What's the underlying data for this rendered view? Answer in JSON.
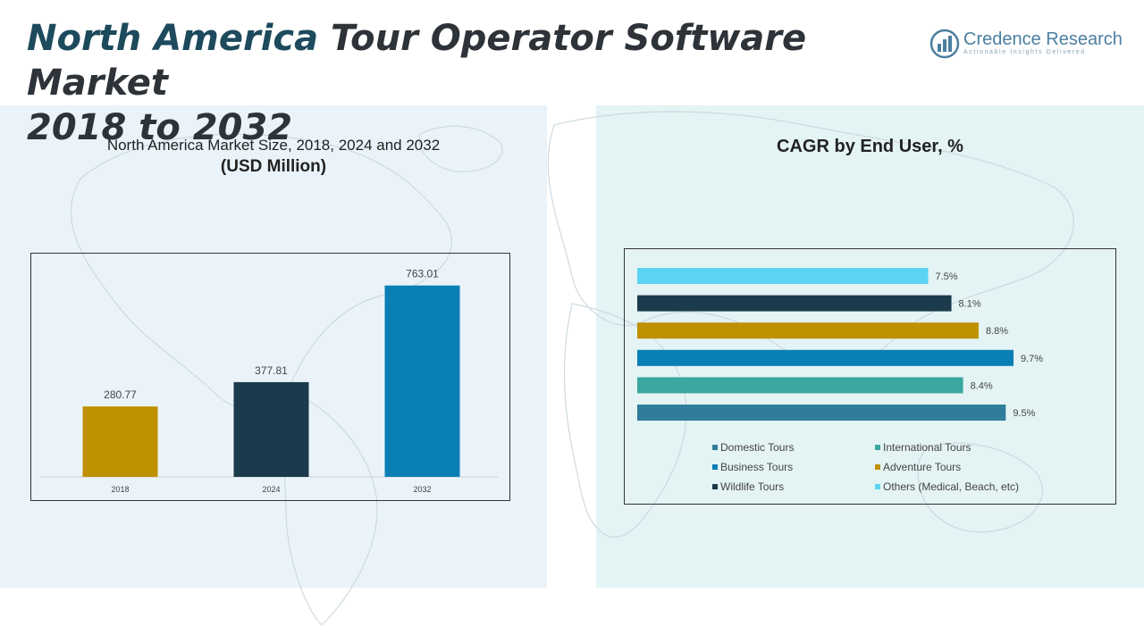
{
  "header": {
    "title_accent": "North America",
    "title_rest": " Tour Operator Software Market",
    "title_line2": "2018 to 2032",
    "logo_name": "Credence Research",
    "logo_tagline": "Actionable Insights Delivered"
  },
  "colors": {
    "title": "#2d3338",
    "title_accent": "#1d4a5c",
    "left_panel_bg": "#eaf3f9",
    "right_panel_bg": "#e4f3f4"
  },
  "chart_data": [
    {
      "type": "bar",
      "title": "North America Market Size, 2018, 2024 and 2032",
      "subtitle": "(USD Million)",
      "categories": [
        "2018",
        "2024",
        "2032"
      ],
      "values": [
        280.77,
        377.81,
        763.01
      ],
      "value_labels": [
        "280.77",
        "377.81",
        "763.01"
      ],
      "colors": [
        "#bf9000",
        "#1b3a4b",
        "#0a7fb5"
      ],
      "ylim": [
        0,
        800
      ],
      "grid": false,
      "legend": "none"
    },
    {
      "type": "bar",
      "orientation": "horizontal",
      "title": "CAGR by End User, %",
      "categories": [
        "Others (Medical, Beach, etc)",
        "Wildlife Tours",
        "Adventure Tours",
        "Business Tours",
        "International Tours",
        "Domestic Tours"
      ],
      "values": [
        7.5,
        8.1,
        8.8,
        9.7,
        8.4,
        9.5
      ],
      "value_labels": [
        "7.5%",
        "8.1%",
        "8.8%",
        "9.7%",
        "8.4%",
        "9.5%"
      ],
      "colors": [
        "#5dd3f3",
        "#1b3a4b",
        "#bf9000",
        "#0a7fb5",
        "#3aa8a0",
        "#2f7d9a"
      ],
      "legend_items": [
        {
          "label": "Domestic Tours",
          "color": "#2f7d9a"
        },
        {
          "label": "International Tours",
          "color": "#3aa8a0"
        },
        {
          "label": "Business Tours",
          "color": "#0a7fb5"
        },
        {
          "label": "Adventure Tours",
          "color": "#bf9000"
        },
        {
          "label": "Wildlife Tours",
          "color": "#1b3a4b"
        },
        {
          "label": "Others (Medical, Beach, etc)",
          "color": "#5dd3f3"
        }
      ],
      "xlim": [
        0,
        10.5
      ],
      "grid": false,
      "legend": "bottom"
    }
  ]
}
